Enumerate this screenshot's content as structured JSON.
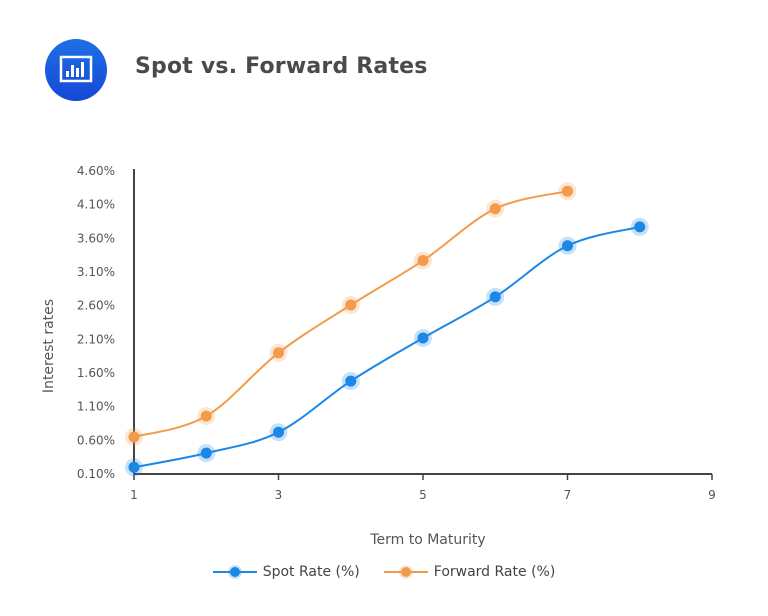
{
  "header": {
    "title": "Spot vs. Forward Rates",
    "icon": "bar-chart-icon"
  },
  "chart_data": {
    "type": "line",
    "title": "Spot vs. Forward Rates",
    "xlabel": "Term to Maturity",
    "ylabel": "Interest rates",
    "xlim": [
      1,
      9
    ],
    "ylim": [
      0.1,
      4.6
    ],
    "x_ticks": [
      "1",
      "3",
      "5",
      "7",
      "9"
    ],
    "y_ticks": [
      "0.10%",
      "0.60%",
      "1.10%",
      "1.60%",
      "2.10%",
      "2.60%",
      "3.10%",
      "3.60%",
      "4.10%",
      "4.60%"
    ],
    "grid": false,
    "legend_position": "bottom",
    "series": [
      {
        "name": "Spot Rate (%)",
        "color": "#1b87e6",
        "x": [
          1,
          2,
          3,
          4,
          5,
          6,
          7,
          8
        ],
        "values": [
          0.2,
          0.41,
          0.72,
          1.48,
          2.12,
          2.73,
          3.49,
          3.77
        ]
      },
      {
        "name": "Forward Rate (%)",
        "color": "#f39b4c",
        "x": [
          1,
          2,
          3,
          4,
          5,
          6,
          7
        ],
        "values": [
          0.65,
          0.96,
          1.9,
          2.61,
          3.27,
          4.04,
          4.3
        ]
      }
    ]
  }
}
